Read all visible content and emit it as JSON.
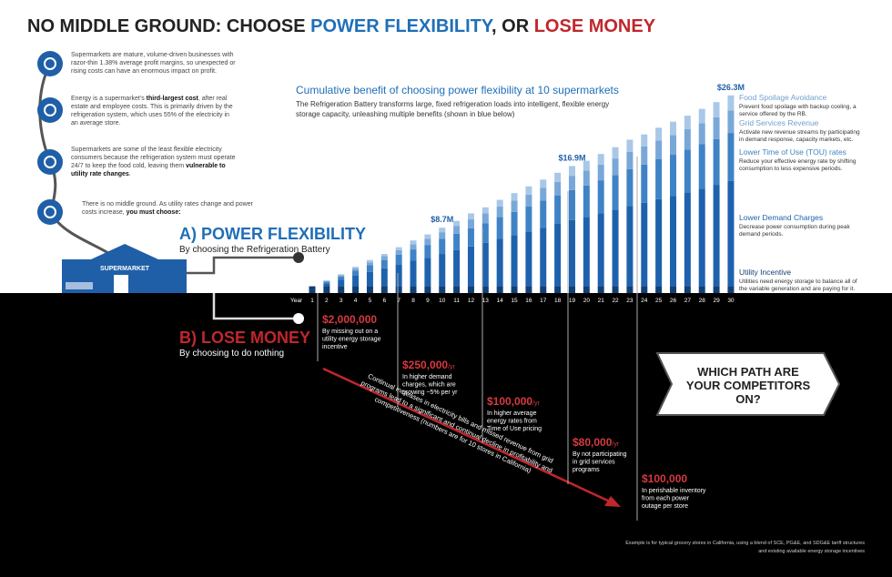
{
  "title_parts": [
    {
      "text": "NO MIDDLE GROUND: CHOOSE ",
      "color": "#222222"
    },
    {
      "text": "POWER FLEXIBILITY",
      "color": "#1f6fb8"
    },
    {
      "text": ", OR ",
      "color": "#222222"
    },
    {
      "text": "LOSE MONEY",
      "color": "#c0272d"
    }
  ],
  "left_items": [
    {
      "lines": [
        [
          {
            "text": "Supermarkets are mature, volume-driven businesses with"
          }
        ],
        [
          {
            "text": "razor-thin 1.38% average profit margins, so unexpected or"
          }
        ],
        [
          {
            "text": "rising costs can have an enormous impact on profit."
          }
        ]
      ]
    },
    {
      "lines": [
        [
          {
            "text": "Energy is a supermarket's "
          },
          {
            "text": "third-largest cost",
            "bold": true
          },
          {
            "text": ", after real"
          }
        ],
        [
          {
            "text": "estate and employee costs. This is primarily driven by the"
          }
        ],
        [
          {
            "text": "refrigeration system, which uses 55% of the electricity in"
          }
        ],
        [
          {
            "text": "an average store."
          }
        ]
      ]
    },
    {
      "lines": [
        [
          {
            "text": "Supermarkets are some of the least flexible electricity"
          }
        ],
        [
          {
            "text": "consumers because the refrigeration system must operate"
          }
        ],
        [
          {
            "text": "24/7 to keep the food cold, leaving them "
          },
          {
            "text": "vulnerable to",
            "bold": true
          }
        ],
        [
          {
            "text": "utility rate changes",
            "bold": true
          },
          {
            "text": "."
          }
        ]
      ]
    },
    {
      "lines": [
        [
          {
            "text": "There is no middle ground. As utility rates change and power"
          }
        ],
        [
          {
            "text": "costs increase, "
          },
          {
            "text": "you must choose:",
            "bold": true
          }
        ]
      ]
    }
  ],
  "building_label": "SUPERMARKET",
  "path_a": {
    "title": "A) POWER FLEXIBILITY",
    "subtitle": "By choosing the Refrigeration Battery"
  },
  "path_b": {
    "title": "B) LOSE MONEY",
    "subtitle": "By choosing to do nothing"
  },
  "chart_data": {
    "type": "stacked_bar",
    "title": "Cumulative benefit of choosing power flexibility at 10 supermarkets",
    "subtitle_lines": [
      "The Refrigeration Battery transforms large, fixed refrigeration loads into intelligent, flexible energy",
      "storage capacity, unleashing multiple benefits (shown in blue below)"
    ],
    "x_label": "Year",
    "categories": [
      "1",
      "2",
      "3",
      "4",
      "5",
      "6",
      "7",
      "8",
      "9",
      "10",
      "11",
      "12",
      "13",
      "14",
      "15",
      "16",
      "17",
      "18",
      "19",
      "20",
      "21",
      "22",
      "23",
      "24",
      "25",
      "26",
      "27",
      "28",
      "29",
      "30"
    ],
    "ylim": [
      0,
      27
    ],
    "series": [
      {
        "name": "Utility Incentive",
        "color": "#123f75",
        "description_lines": [
          "Utilities need energy storage to balance all of",
          "the variable generation and are paying for it."
        ],
        "values": [
          0.9,
          0.9,
          0.9,
          0.9,
          0.9,
          0.9,
          0.9,
          0.9,
          0.9,
          0.9,
          0.9,
          0.9,
          0.9,
          0.9,
          0.9,
          0.9,
          0.9,
          0.9,
          0.9,
          0.9,
          0.9,
          0.9,
          0.9,
          0.9,
          0.9,
          0.9,
          0.9,
          0.9,
          0.9,
          0.9
        ]
      },
      {
        "name": "Lower Demand Charges",
        "color": "#1e62ad",
        "description_lines": [
          "Decrease power consumption during peak",
          "demand periods."
        ],
        "values": [
          0,
          0.4,
          0.9,
          1.4,
          1.9,
          2.4,
          2.9,
          3.4,
          3.8,
          4.3,
          4.8,
          5.3,
          5.8,
          6.3,
          6.8,
          7.3,
          7.8,
          8.3,
          8.8,
          9.2,
          9.7,
          10.2,
          10.7,
          11.1,
          11.6,
          12.0,
          12.5,
          13.0,
          13.5,
          14.0
        ]
      },
      {
        "name": "Lower Time of Use (TOU) rates",
        "color": "#3f83c6",
        "description_lines": [
          "Reduce your effective energy rate by shifting",
          "consumption to less expensive periods."
        ],
        "values": [
          0,
          0.2,
          0.4,
          0.7,
          0.9,
          1.1,
          1.3,
          1.5,
          1.7,
          2.0,
          2.2,
          2.4,
          2.6,
          2.9,
          3.1,
          3.3,
          3.6,
          3.8,
          4.0,
          4.2,
          4.4,
          4.6,
          4.9,
          5.1,
          5.3,
          5.5,
          5.7,
          5.9,
          6.1,
          6.4
        ]
      },
      {
        "name": "Grid Services Revenue",
        "color": "#79a8d8",
        "description_lines": [
          "Activate new revenue streams by participating",
          "in demand response, capacity markets, etc."
        ],
        "values": [
          0,
          0.1,
          0.2,
          0.3,
          0.4,
          0.5,
          0.6,
          0.7,
          0.8,
          0.9,
          1.0,
          1.2,
          1.3,
          1.4,
          1.5,
          1.6,
          1.7,
          1.8,
          1.9,
          2.0,
          2.1,
          2.2,
          2.3,
          2.4,
          2.5,
          2.6,
          2.7,
          2.8,
          2.9,
          3.0
        ]
      },
      {
        "name": "Food Spoilage Avoidance",
        "color": "#a9c8e8",
        "description_lines": [
          "Prevent food spoilage with backup cooling, a",
          "service offered by the RB."
        ],
        "values": [
          0,
          0.1,
          0.1,
          0.2,
          0.3,
          0.3,
          0.4,
          0.5,
          0.6,
          0.6,
          0.7,
          0.8,
          0.8,
          0.9,
          1.0,
          1.1,
          1.1,
          1.2,
          1.3,
          1.3,
          1.4,
          1.5,
          1.6,
          1.6,
          1.7,
          1.8,
          1.8,
          1.9,
          2.0,
          2.0
        ]
      }
    ],
    "annotations": [
      {
        "text": "$8.7M",
        "category": "10"
      },
      {
        "text": "$16.9M",
        "category": "19"
      },
      {
        "text": "$26.3M",
        "category": "30"
      }
    ]
  },
  "callouts": [
    {
      "amount": "$2,000,000",
      "lines": [
        "By missing out on a",
        "utility energy storage",
        "incentive"
      ]
    },
    {
      "amount": "$250,000",
      "per": "/yr",
      "lines": [
        "In higher demand",
        "charges, which are",
        "growing ~5% per yr"
      ]
    },
    {
      "amount": "$100,000",
      "per": "/yr",
      "lines": [
        "In higher average",
        "energy rates from",
        "Time of Use pricing"
      ]
    },
    {
      "amount": "$80,000",
      "per": "/yr",
      "lines": [
        "By not participating",
        "in grid services",
        "programs"
      ]
    },
    {
      "amount": "$100,000",
      "lines": [
        "In perishable inventory",
        "from each power",
        "outage per store"
      ]
    }
  ],
  "decline_lines": [
    "Continual increases in electricity bills and missed revenue from grid",
    "programs lead to a significant and continual decline in profitability and",
    "competitiveness (numbers are for 10 stores in California)"
  ],
  "question_lines": [
    "WHICH PATH ARE",
    "YOUR COMPETITORS",
    "ON?"
  ],
  "footnote_lines": [
    "Example is for typical grocery stores in California, using a blend of SCE, PG&E, and SDG&E tariff structures",
    "and existing available energy storage incentives"
  ]
}
